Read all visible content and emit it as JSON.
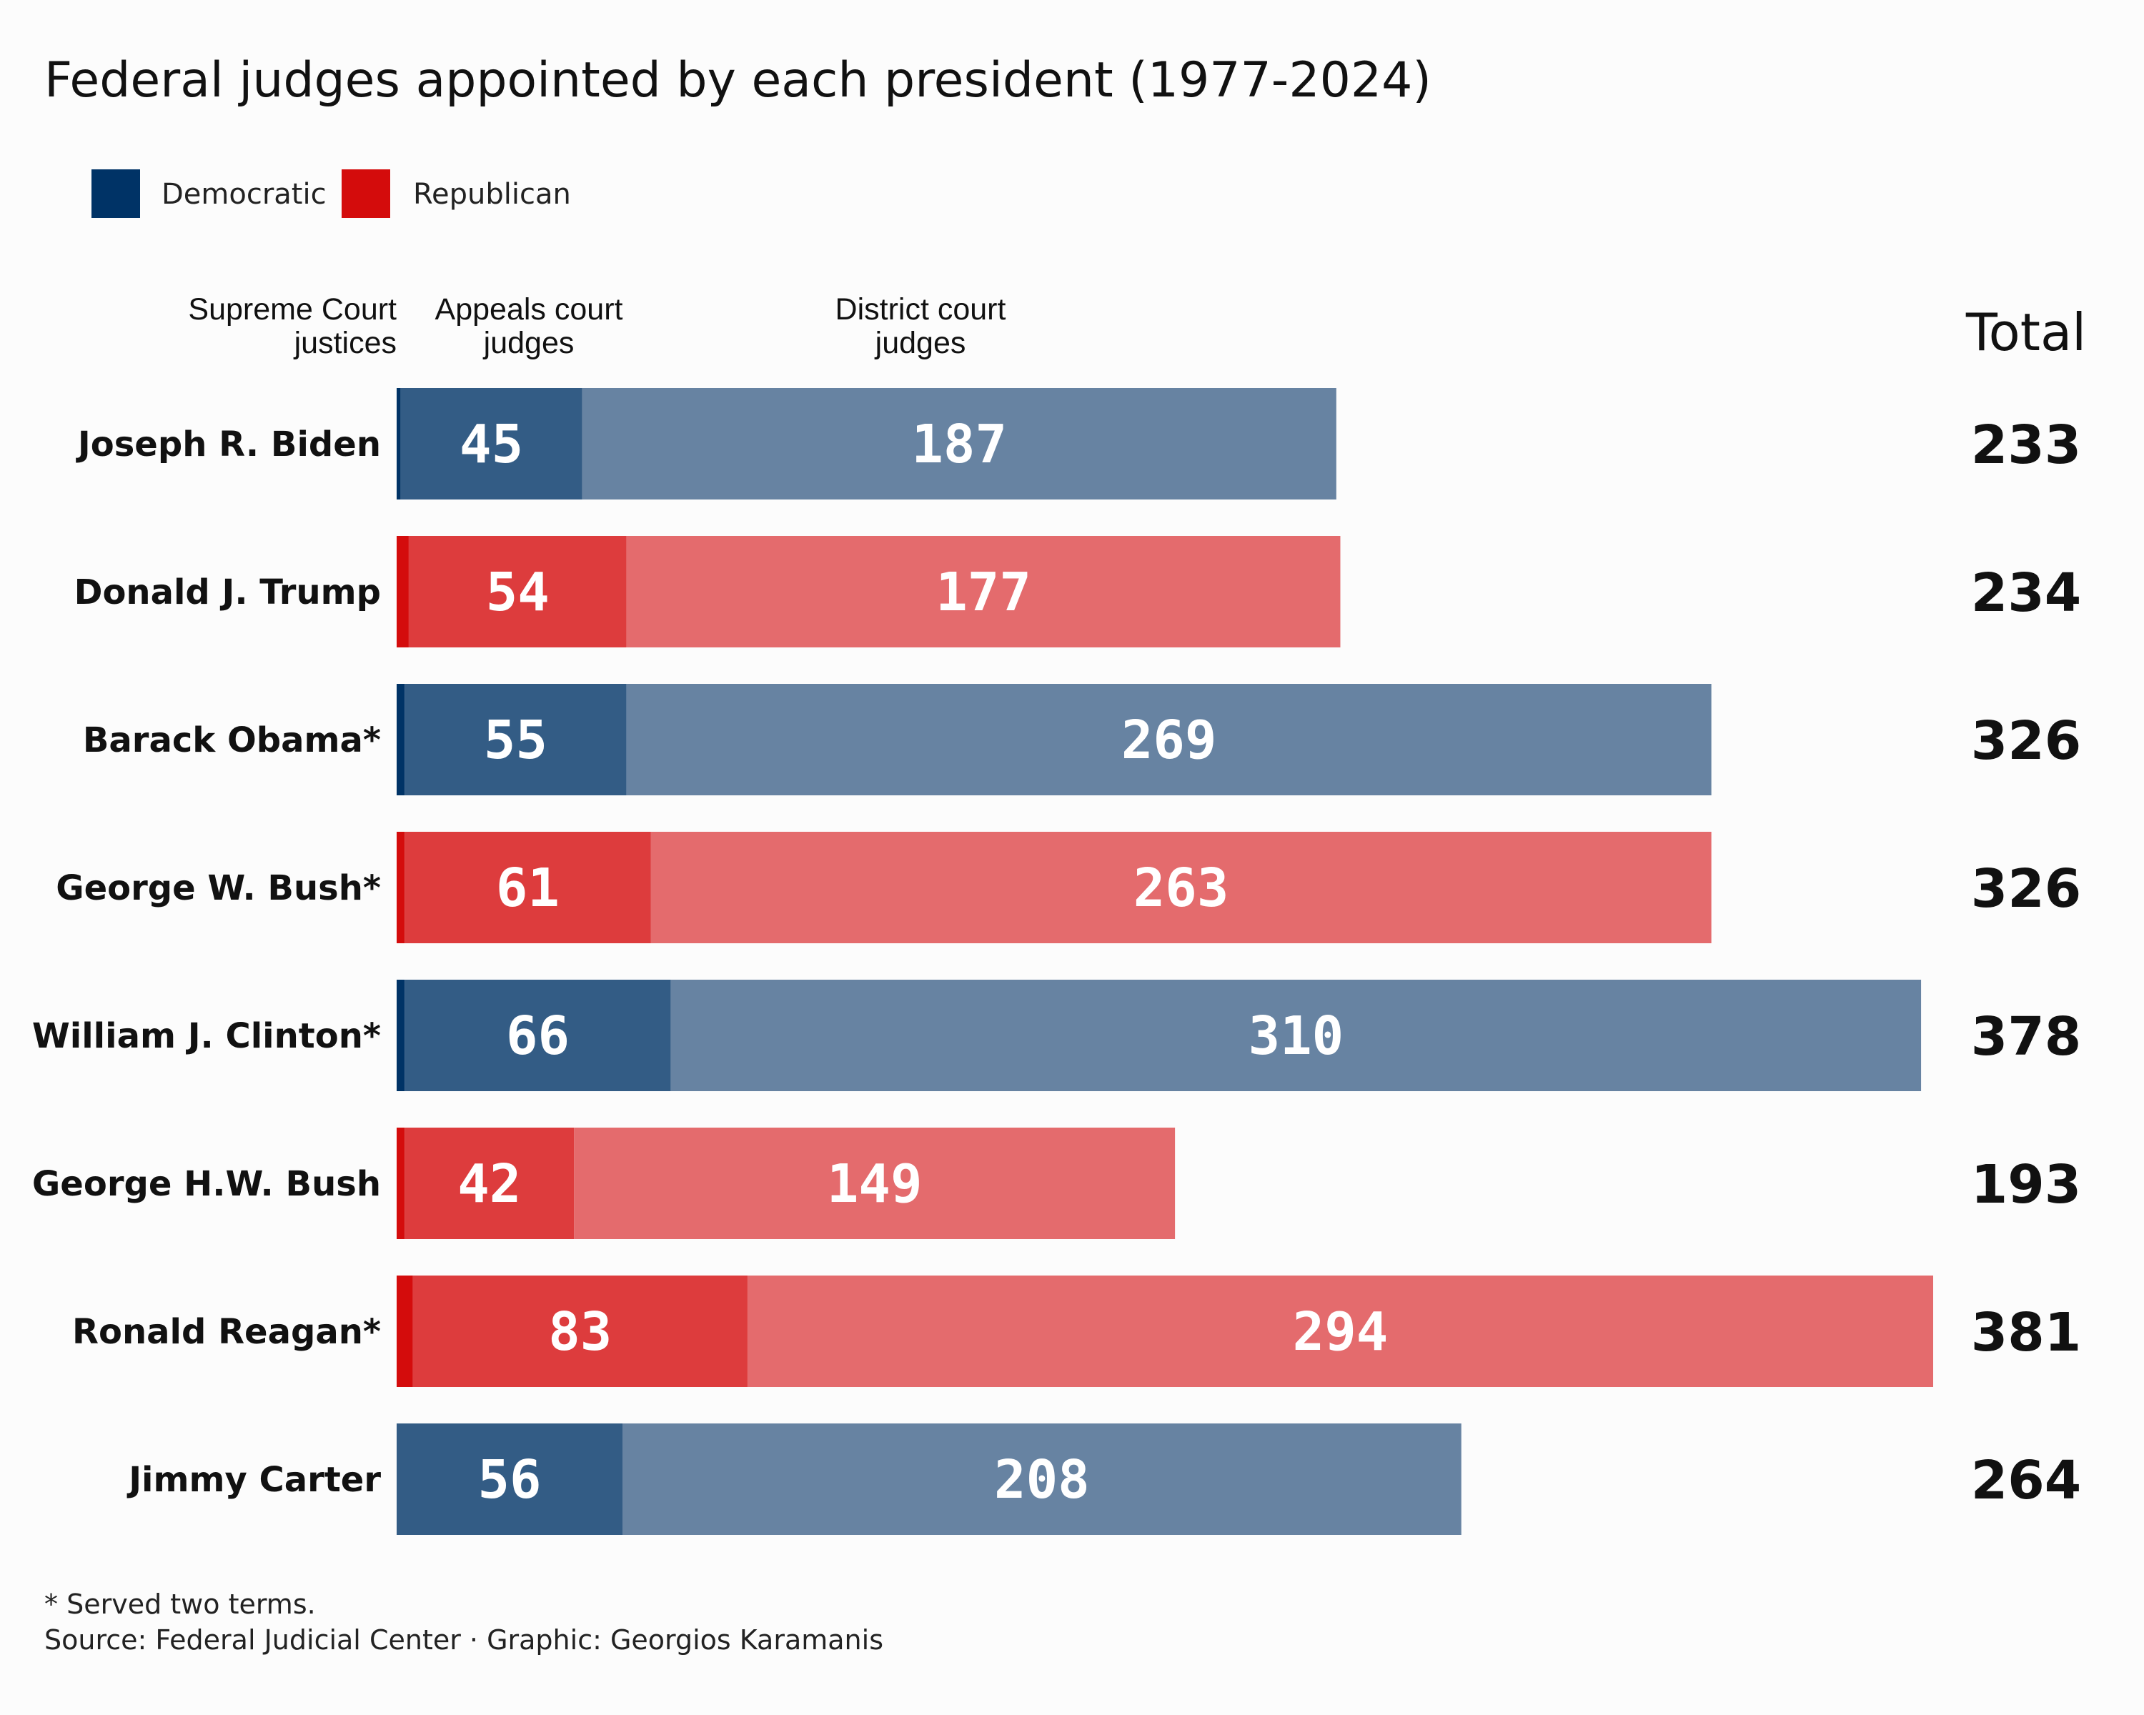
{
  "title": "Federal judges appointed by each president (1977-2024)",
  "legend": [
    {
      "label": "Democratic",
      "color": "#003366"
    },
    {
      "label": "Republican",
      "color": "#d40c0c"
    }
  ],
  "column_headers": {
    "supreme": [
      "Supreme Court",
      "justices"
    ],
    "appeals": [
      "Appeals court",
      "judges"
    ],
    "district": [
      "District court",
      "judges"
    ],
    "total": "Total"
  },
  "colors": {
    "dem_supreme": "#003366",
    "dem_appeals": "#335c85",
    "dem_district": "#6783a2",
    "rep_supreme": "#d40c0c",
    "rep_appeals": "#dd3c3d",
    "rep_district": "#e46b6d"
  },
  "chart_data": {
    "type": "bar",
    "orientation": "horizontal",
    "stacked": true,
    "title": "Federal judges appointed by each president (1977-2024)",
    "categories": [
      "Joseph R. Biden",
      "Donald J. Trump",
      "Barack Obama*",
      "George W. Bush*",
      "William J. Clinton*",
      "George H.W. Bush",
      "Ronald Reagan*",
      "Jimmy Carter"
    ],
    "party": [
      "Democratic",
      "Republican",
      "Democratic",
      "Republican",
      "Democratic",
      "Republican",
      "Republican",
      "Democratic"
    ],
    "series": [
      {
        "name": "Supreme Court justices",
        "values": [
          1,
          3,
          2,
          2,
          2,
          2,
          4,
          0
        ]
      },
      {
        "name": "Appeals court judges",
        "values": [
          45,
          54,
          55,
          61,
          66,
          42,
          83,
          56
        ]
      },
      {
        "name": "District court judges",
        "values": [
          187,
          177,
          269,
          263,
          310,
          149,
          294,
          208
        ]
      }
    ],
    "totals": [
      233,
      234,
      326,
      326,
      378,
      193,
      381,
      264
    ],
    "xlim": [
      0,
      381
    ]
  },
  "footnotes": [
    "* Served two terms.",
    "Source: Federal Judicial Center · Graphic: Georgios Karamanis"
  ]
}
